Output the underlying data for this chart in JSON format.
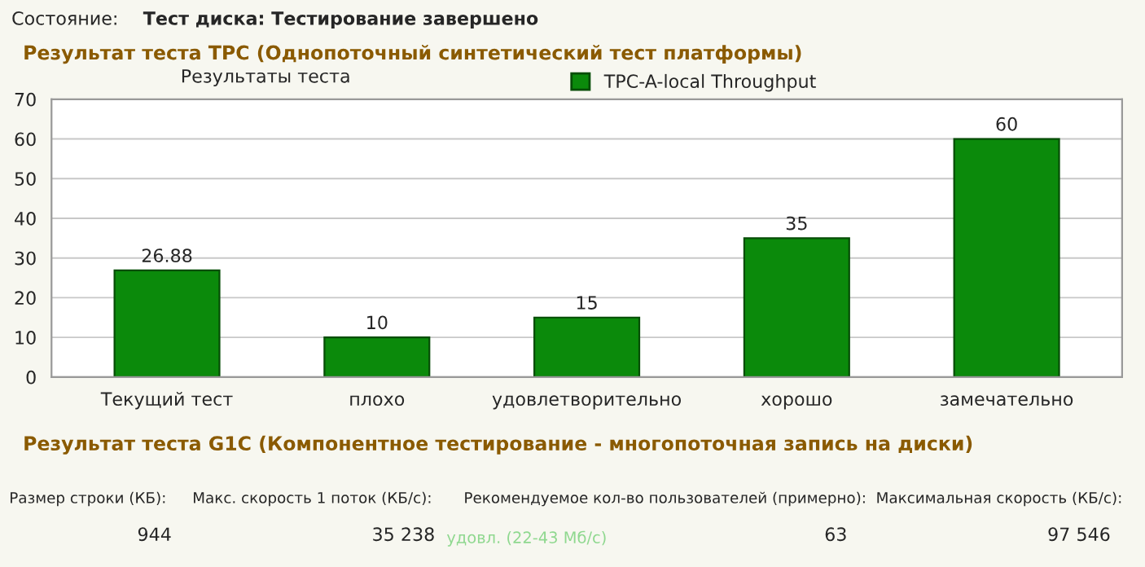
{
  "chart_data": {
    "type": "bar",
    "title": "Результат теста TPC (Однопоточный синтетический тест платформы)",
    "subtitle": "Результаты теста",
    "categories": [
      "Текущий тест",
      "плохо",
      "удовлетворительно",
      "хорошо",
      "замечательно"
    ],
    "series": [
      {
        "name": "TPC-A-local Throughput",
        "color": "#0b8a0b",
        "values": [
          26.88,
          10,
          15,
          35,
          60
        ]
      }
    ],
    "value_labels": [
      "26.88",
      "10",
      "15",
      "35",
      "60"
    ],
    "ylim": [
      0,
      70
    ],
    "yticks": [
      0,
      10,
      20,
      30,
      40,
      50,
      60,
      70
    ],
    "grid": "y",
    "legend": "top",
    "annotations": [
      "Состояние:",
      "Тест диска: Тестирование завершено",
      "Результат теста G1C (Компонентное тестирование - многопоточная запись на диски)",
      "Размер строки (КБ):",
      "944",
      "Макс. скорость 1 поток (КБ/с):",
      "35 238",
      "удовл. (22-43 Мб/с)",
      "Рекомендуемое кол-во пользователей (примерно):",
      "63",
      "Максимальная скорость (КБ/с):",
      "97 546"
    ]
  }
}
